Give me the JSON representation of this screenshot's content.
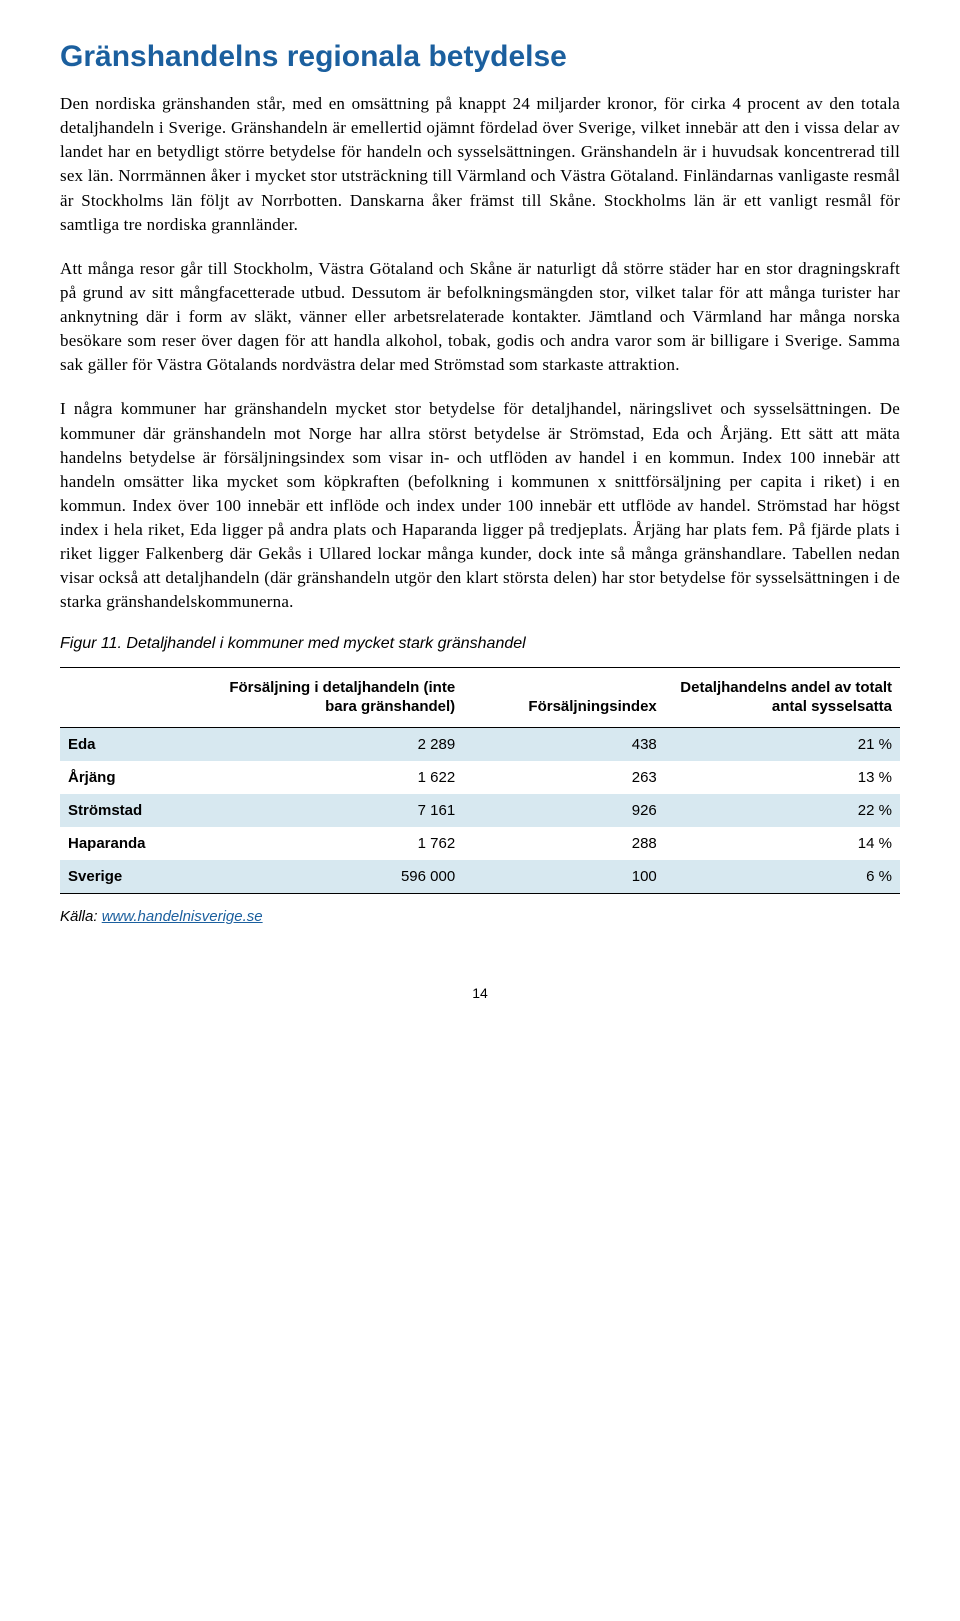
{
  "heading": "Gränshandelns regionala betydelse",
  "paragraphs": [
    "Den nordiska gränshanden står, med en omsättning på knappt 24 miljarder kronor, för cirka 4 procent av den totala detaljhandeln i Sverige. Gränshandeln är emellertid ojämnt fördelad över Sverige, vilket innebär att den i vissa delar av landet har en betydligt större betydelse för handeln och sysselsättningen. Gränshandeln är i huvudsak koncentrerad till sex län. Norrmännen åker i mycket stor utsträckning till Värmland och Västra Götaland. Finländarnas vanligaste resmål är Stockholms län följt av Norrbotten. Danskarna åker främst till Skåne. Stockholms län är ett vanligt resmål för samtliga tre nordiska grannländer.",
    "Att många resor går till Stockholm, Västra Götaland och Skåne är naturligt då större städer har en stor dragningskraft på grund av sitt mångfacetterade utbud. Dessutom är befolkningsmängden stor, vilket talar för att många turister har anknytning där i form av släkt, vänner eller arbetsrelaterade kontakter. Jämtland och Värmland har många norska besökare som reser över dagen för att handla alkohol, tobak, godis och andra varor som är billigare i Sverige. Samma sak gäller för Västra Götalands nordvästra delar med Strömstad som starkaste attraktion.",
    "I några kommuner har gränshandeln mycket stor betydelse för detaljhandel, näringslivet och sysselsättningen. De kommuner där gränshandeln mot Norge har allra störst betydelse är Strömstad, Eda och Årjäng. Ett sätt att mäta handelns betydelse är försäljningsindex som visar in- och utflöden av handel i en kommun. Index 100 innebär att handeln omsätter lika mycket som köpkraften (befolkning i kommunen x snittförsäljning per capita i riket) i en kommun. Index över 100 innebär ett inflöde och index under 100 innebär ett utflöde av handel. Strömstad har högst index i hela riket, Eda ligger på andra plats och Haparanda ligger på tredjeplats. Årjäng har plats fem. På fjärde plats i riket ligger Falkenberg där Gekås i Ullared lockar många kunder, dock inte så många gränshandlare. Tabellen nedan visar också att detaljhandeln (där gränshandeln utgör den klart största delen) har stor betydelse för sysselsättningen i de starka gränshandelskommunerna."
  ],
  "figure_caption": "Figur 11. Detaljhandel i kommuner med mycket stark gränshandel",
  "table": {
    "columns": [
      "",
      "Försäljning i detaljhandeln (inte bara gränshandel)",
      "Försäljningsindex",
      "Detaljhandelns andel av totalt antal sysselsatta"
    ],
    "rows": [
      {
        "name": "Eda",
        "sales": "2 289",
        "index": "438",
        "share": "21 %",
        "striped": true
      },
      {
        "name": "Årjäng",
        "sales": "1 622",
        "index": "263",
        "share": "13 %",
        "striped": false
      },
      {
        "name": "Strömstad",
        "sales": "7 161",
        "index": "926",
        "share": "22 %",
        "striped": true
      },
      {
        "name": "Haparanda",
        "sales": "1 762",
        "index": "288",
        "share": "14 %",
        "striped": false
      },
      {
        "name": "Sverige",
        "sales": "596 000",
        "index": "100",
        "share": "6 %",
        "striped": true
      }
    ],
    "stripe_color": "#d7e8f0",
    "border_color": "#000000"
  },
  "source_label": "Källa: ",
  "source_link_text": "www.handelnisverige.se",
  "page_number": "14",
  "colors": {
    "heading": "#1b5f9e",
    "link": "#1b5f9e",
    "text": "#000000",
    "background": "#ffffff"
  },
  "fonts": {
    "heading_family": "Arial",
    "body_family": "Georgia",
    "heading_size_pt": 22,
    "body_size_pt": 12
  }
}
